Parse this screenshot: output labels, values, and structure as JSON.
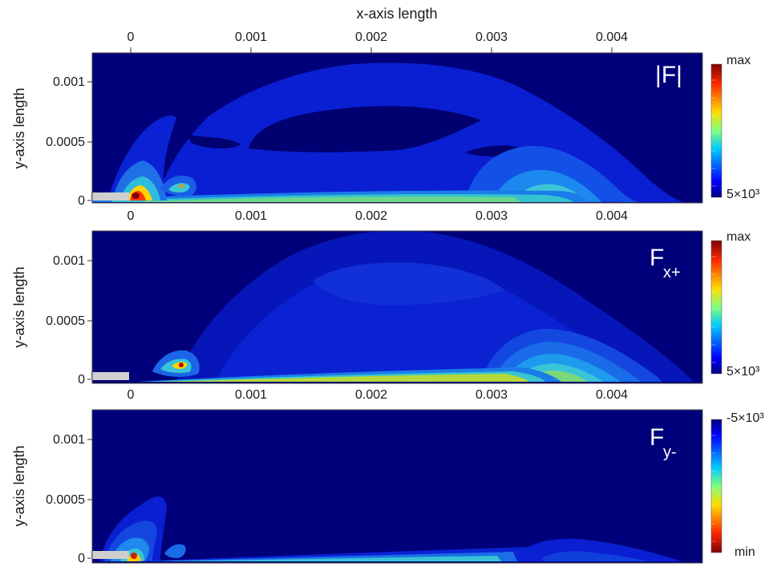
{
  "chart_data": [
    {
      "type": "heatmap",
      "label_main": "|F|",
      "label_sub": "",
      "xlabel": "x-axis length",
      "ylabel": "y-axis length",
      "x_ticks": [
        "0",
        "0.001",
        "0.002",
        "0.003",
        "0.004"
      ],
      "x_tick_values": [
        0,
        0.001,
        0.002,
        0.003,
        0.004
      ],
      "y_ticks": [
        "0",
        "0.0005",
        "0.001"
      ],
      "y_tick_values": [
        0,
        0.0005,
        0.001
      ],
      "xlim": [
        -0.00032,
        0.00478
      ],
      "ylim": [
        -2e-05,
        0.00125
      ],
      "colorbar": {
        "top": "max",
        "bottom": "5×10³"
      },
      "colormap": "jet"
    },
    {
      "type": "heatmap",
      "label_main": "F",
      "label_sub": "x+",
      "xlabel": "",
      "ylabel": "y-axis length",
      "x_ticks": [
        "0",
        "0.001",
        "0.002",
        "0.003",
        "0.004"
      ],
      "x_tick_values": [
        0,
        0.001,
        0.002,
        0.003,
        0.004
      ],
      "y_ticks": [
        "0",
        "0.0005",
        "0.001"
      ],
      "y_tick_values": [
        0,
        0.0005,
        0.001
      ],
      "xlim": [
        -0.00032,
        0.00478
      ],
      "ylim": [
        -2e-05,
        0.00125
      ],
      "colorbar": {
        "top": "max",
        "bottom": "5×10³"
      },
      "colormap": "jet"
    },
    {
      "type": "heatmap",
      "label_main": "F",
      "label_sub": "y-",
      "xlabel": "",
      "ylabel": "y-axis length",
      "x_ticks": [
        "0",
        "0.001",
        "0.002",
        "0.003",
        "0.004"
      ],
      "x_tick_values": [
        0,
        0.001,
        0.002,
        0.003,
        0.004
      ],
      "y_ticks": [
        "0",
        "0.0005",
        "0.001"
      ],
      "y_tick_values": [
        0,
        0.0005,
        0.001
      ],
      "xlim": [
        -0.00032,
        0.00478
      ],
      "ylim": [
        -2e-05,
        0.00125
      ],
      "colorbar": {
        "top": "-5×10³",
        "bottom": "min"
      },
      "colormap": "jet (reversed)"
    }
  ]
}
